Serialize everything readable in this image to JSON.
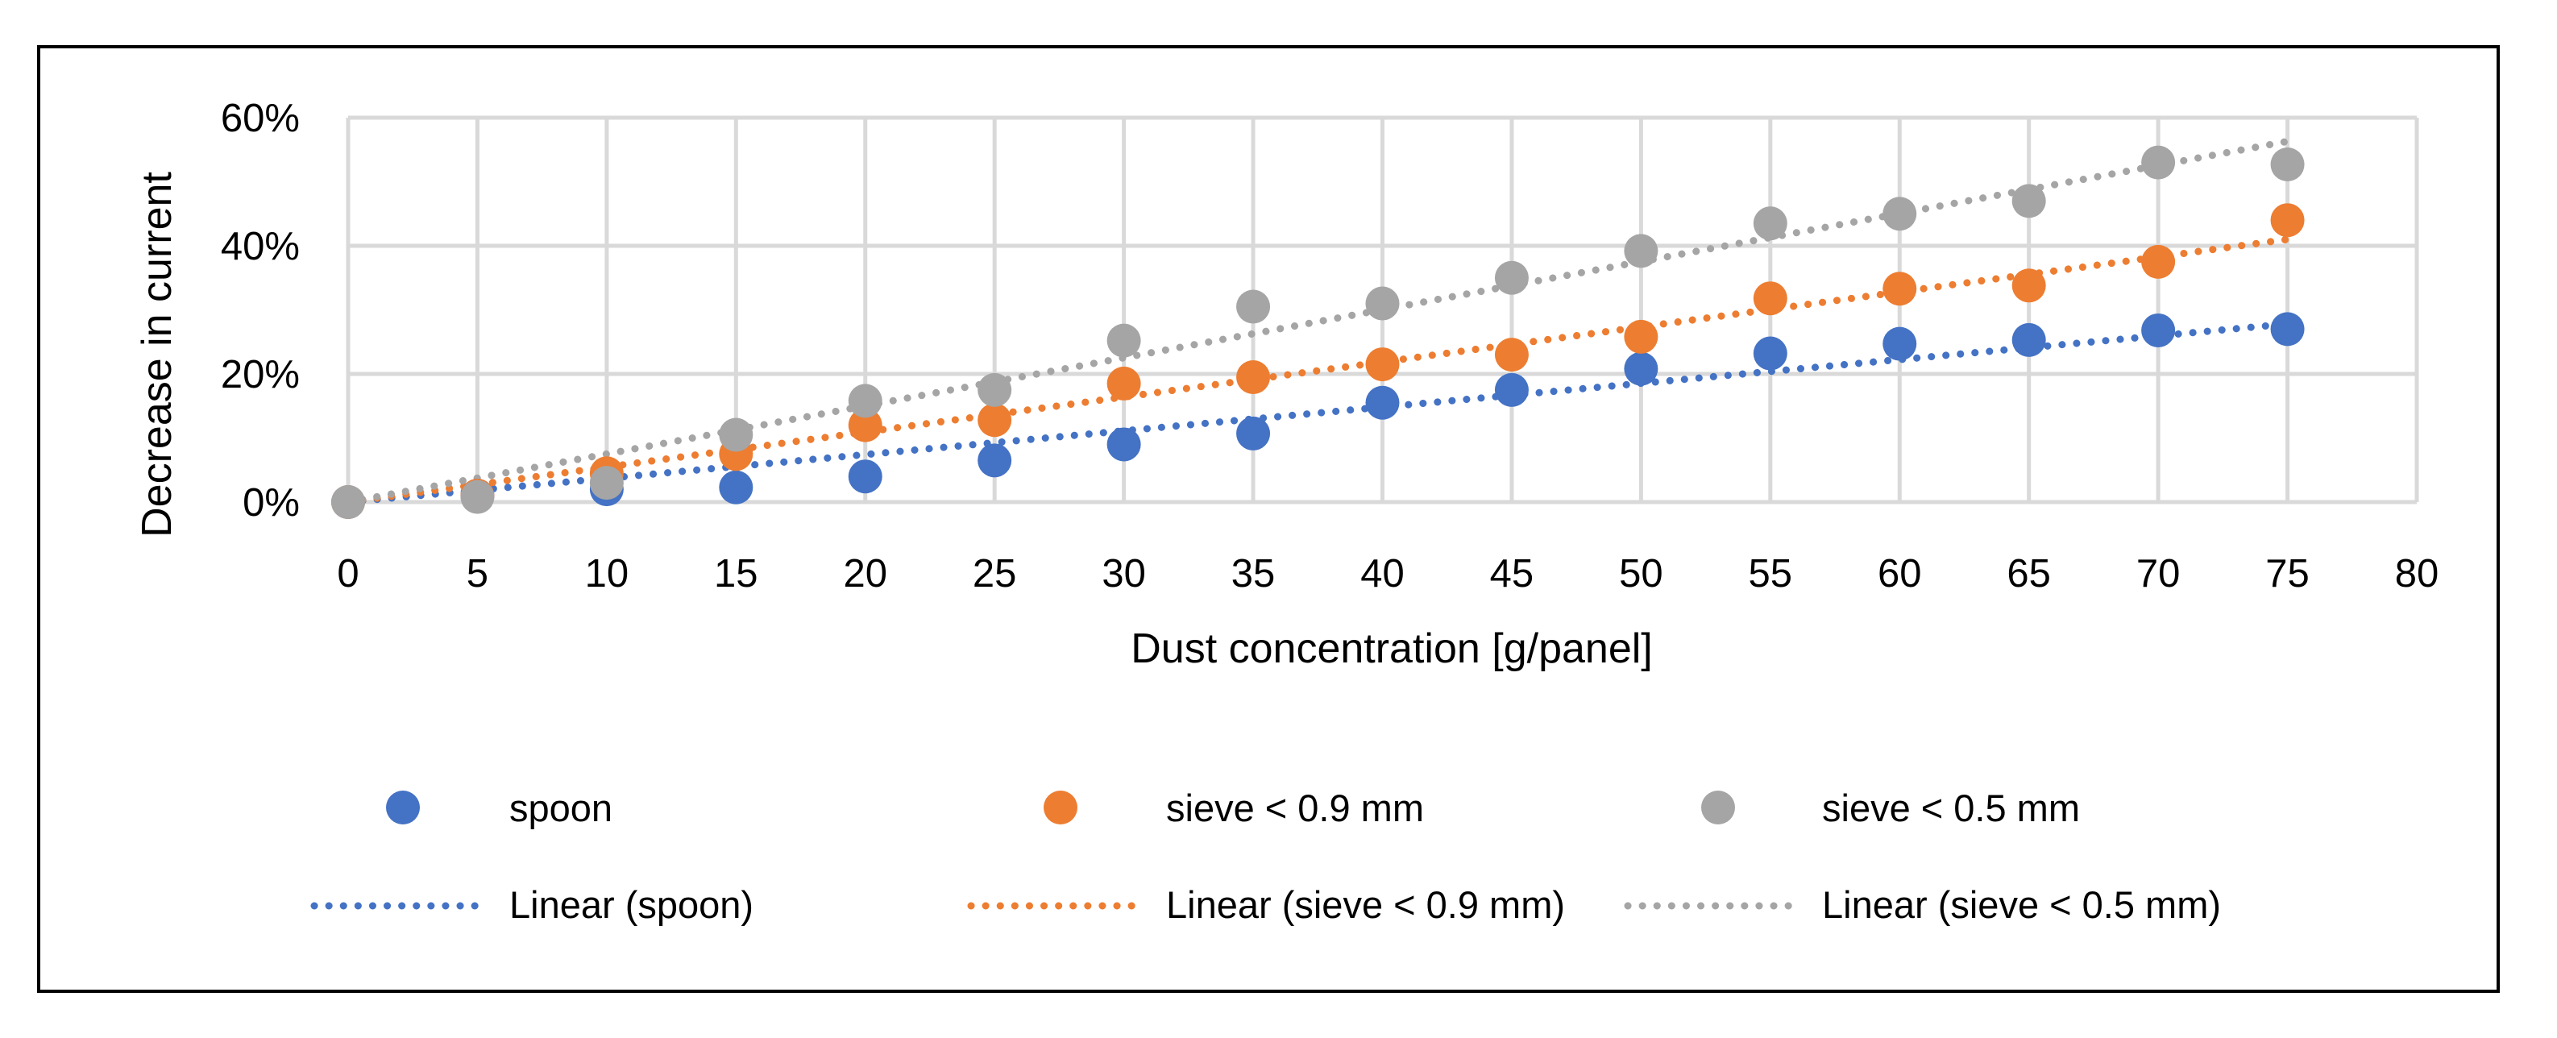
{
  "chart_data": {
    "type": "scatter",
    "title": "",
    "xlabel": "Dust concentration [g/panel]",
    "ylabel": "Decrease in current",
    "xlim": [
      0,
      80
    ],
    "ylim": [
      0,
      0.6
    ],
    "x_ticks": [
      0,
      5,
      10,
      15,
      20,
      25,
      30,
      35,
      40,
      45,
      50,
      55,
      60,
      65,
      70,
      75,
      80
    ],
    "x_tick_labels": [
      "0",
      "5",
      "10",
      "15",
      "20",
      "25",
      "30",
      "35",
      "40",
      "45",
      "50",
      "55",
      "60",
      "65",
      "70",
      "75",
      "80"
    ],
    "y_ticks": [
      0,
      0.2,
      0.4,
      0.6
    ],
    "y_tick_labels": [
      "0%",
      "20%",
      "40%",
      "60%"
    ],
    "grid": true,
    "legend_position": "bottom",
    "x": [
      0,
      5,
      10,
      15,
      20,
      25,
      30,
      35,
      40,
      45,
      50,
      55,
      60,
      65,
      70,
      75
    ],
    "series": [
      {
        "name": "spoon",
        "color": "#4472c4",
        "values": [
          0.0,
          0.01,
          0.02,
          0.023,
          0.04,
          0.065,
          0.09,
          0.107,
          0.155,
          0.175,
          0.208,
          0.232,
          0.247,
          0.253,
          0.268,
          0.27
        ],
        "trendline": {
          "name": "Linear (spoon)",
          "from": [
            0,
            0.0
          ],
          "to": [
            75,
            0.278
          ]
        }
      },
      {
        "name": "sieve < 0.9 mm",
        "color": "#ed7d31",
        "values": [
          0.0,
          0.01,
          0.045,
          0.075,
          0.12,
          0.128,
          0.185,
          0.195,
          0.215,
          0.23,
          0.258,
          0.318,
          0.333,
          0.338,
          0.375,
          0.44
        ],
        "trendline": {
          "name": "Linear (sieve < 0.9 mm)",
          "from": [
            0,
            0.0
          ],
          "to": [
            75,
            0.41
          ]
        }
      },
      {
        "name": "sieve < 0.5 mm",
        "color": "#a5a5a5",
        "values": [
          0.0,
          0.008,
          0.03,
          0.105,
          0.158,
          0.175,
          0.252,
          0.305,
          0.31,
          0.35,
          0.392,
          0.435,
          0.45,
          0.47,
          0.53,
          0.527
        ],
        "trendline": {
          "name": "Linear (sieve < 0.5 mm)",
          "from": [
            0,
            0.0
          ],
          "to": [
            75,
            0.563
          ]
        }
      }
    ]
  }
}
